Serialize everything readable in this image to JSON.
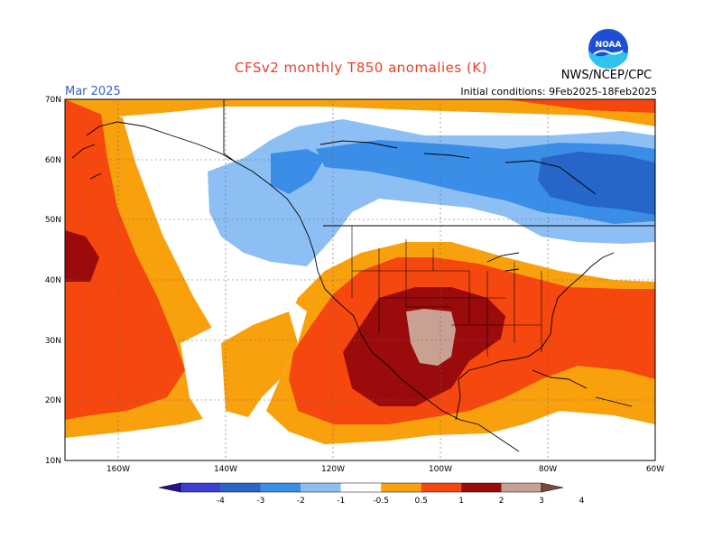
{
  "header": {
    "title": "CFSv2 monthly T850 anomalies (K)",
    "month": "Mar 2025",
    "initial_conditions": "Initial conditions: 9Feb2025-18Feb2025",
    "agency": "NWS/NCEP/CPC",
    "logo_text": "NOAA"
  },
  "map": {
    "lat_ticks": [
      "10N",
      "20N",
      "30N",
      "40N",
      "50N",
      "60N",
      "70N"
    ],
    "lon_ticks": [
      "160W",
      "140W",
      "120W",
      "100W",
      "80W",
      "60W"
    ],
    "lon_range": [
      -170,
      -60
    ],
    "lat_range": [
      10,
      70
    ]
  },
  "colorbar": {
    "labels": [
      "-4",
      "-3",
      "-2",
      "-1",
      "-0.5",
      "0.5",
      "1",
      "2",
      "3",
      "4"
    ],
    "colors": [
      "#2a0f8a",
      "#3b3fd1",
      "#2566c8",
      "#3a8ee8",
      "#8dbff4",
      "#ffffff",
      "#f9a10d",
      "#f5470e",
      "#9c0b0b",
      "#c9a192",
      "#7a4a3e"
    ]
  },
  "anomaly_colors": {
    "lt_minus1": "#8dbff4",
    "lt_minus2": "#3a8ee8",
    "lt_minus3": "#2566c8",
    "gt_0_5": "#f9a10d",
    "gt_1": "#f5470e",
    "gt_2": "#9c0b0b",
    "gt_3": "#c9a192"
  }
}
